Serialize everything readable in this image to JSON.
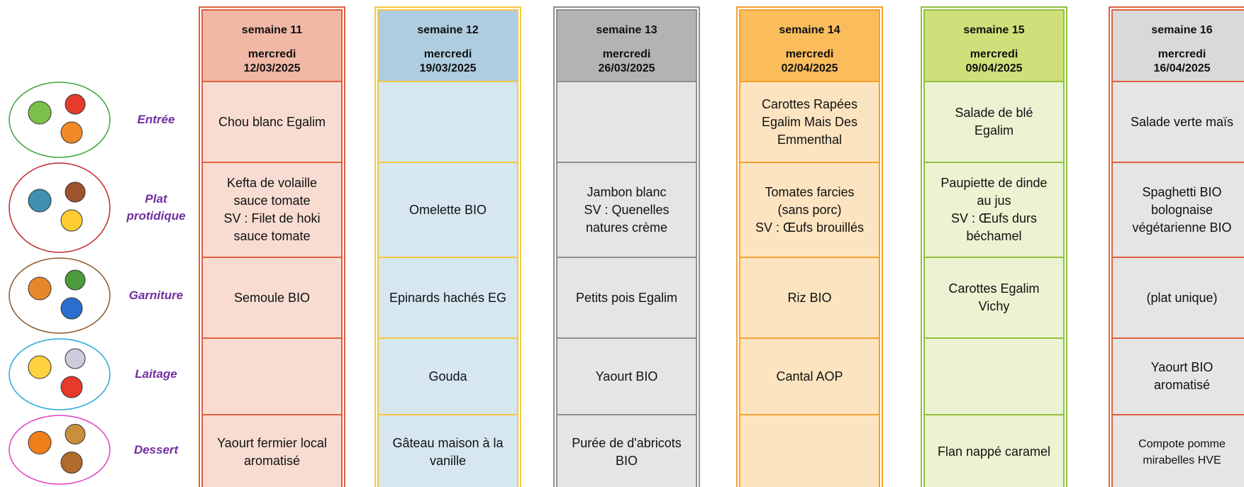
{
  "rows": [
    {
      "label": "Entrée"
    },
    {
      "label": "Plat protidique"
    },
    {
      "label": "Garniture"
    },
    {
      "label": "Laitage"
    },
    {
      "label": "Dessert"
    }
  ],
  "menus": [
    {
      "week": "semaine 11",
      "day": "mercredi",
      "date": "12/03/2025",
      "dishes": [
        [
          "Chou blanc Egalim"
        ],
        [
          "Kefta de volaille",
          "sauce tomate",
          "SV : Filet de hoki",
          "sauce tomate"
        ],
        [
          "Semoule BIO"
        ],
        [],
        [
          "Yaourt fermier local",
          "aromatisé"
        ]
      ]
    },
    {
      "week": "semaine 12",
      "day": "mercredi",
      "date": "19/03/2025",
      "dishes": [
        [],
        [
          "Omelette BIO"
        ],
        [
          "Epinards hachés EG"
        ],
        [
          "Gouda"
        ],
        [
          "Gâteau maison à la",
          "vanille"
        ]
      ]
    },
    {
      "week": "semaine 13",
      "day": "mercredi",
      "date": "26/03/2025",
      "dishes": [
        [],
        [
          "Jambon blanc",
          "SV : Quenelles",
          "natures crème"
        ],
        [
          "Petits pois Egalim"
        ],
        [
          "Yaourt BIO"
        ],
        [
          "Purée de d'abricots",
          "BIO"
        ]
      ]
    },
    {
      "week": "semaine 14",
      "day": "mercredi",
      "date": "02/04/2025",
      "dishes": [
        [
          "Carottes Rapées",
          "Egalim Mais Des",
          "Emmenthal"
        ],
        [
          "Tomates farcies",
          "(sans porc)",
          "SV : Œufs brouillés"
        ],
        [
          "Riz  BIO"
        ],
        [
          "Cantal AOP"
        ],
        []
      ]
    },
    {
      "week": "semaine 15",
      "day": "mercredi",
      "date": "09/04/2025",
      "dishes": [
        [
          "Salade de blé",
          "Egalim"
        ],
        [
          "Paupiette de dinde",
          "au jus",
          "SV : Œufs durs",
          "béchamel"
        ],
        [
          "Carottes Egalim",
          "Vichy"
        ],
        [],
        [
          "Flan nappé caramel"
        ]
      ]
    },
    {
      "week": "semaine 16",
      "day": "mercredi",
      "date": "16/04/2025",
      "dishes": [
        [
          "Salade verte maïs"
        ],
        [
          "Spaghetti BIO",
          "bolognaise",
          "végétarienne BIO"
        ],
        [
          "(plat unique)"
        ],
        [
          "Yaourt BIO",
          "aromatisé"
        ],
        [
          "Compote pomme",
          "mirabelles HVE"
        ]
      ]
    }
  ]
}
